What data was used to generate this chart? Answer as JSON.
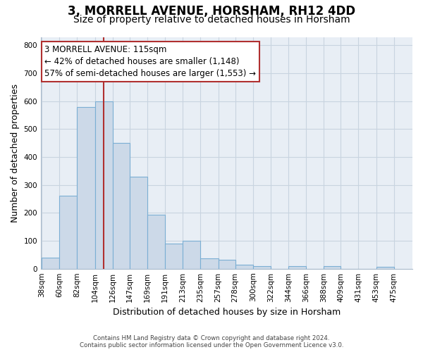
{
  "title": "3, MORRELL AVENUE, HORSHAM, RH12 4DD",
  "subtitle": "Size of property relative to detached houses in Horsham",
  "xlabel": "Distribution of detached houses by size in Horsham",
  "ylabel": "Number of detached properties",
  "bar_left_edges": [
    38,
    60,
    82,
    104,
    126,
    147,
    169,
    191,
    213,
    235,
    257,
    278,
    300,
    322,
    344,
    366,
    388,
    409,
    431,
    453
  ],
  "bar_heights": [
    40,
    262,
    580,
    600,
    450,
    330,
    193,
    90,
    100,
    37,
    32,
    15,
    10,
    0,
    10,
    0,
    10,
    0,
    0,
    8
  ],
  "bar_widths": [
    22,
    22,
    22,
    22,
    21,
    22,
    22,
    22,
    22,
    22,
    21,
    22,
    22,
    22,
    22,
    22,
    21,
    22,
    22,
    22
  ],
  "tick_labels": [
    "38sqm",
    "60sqm",
    "82sqm",
    "104sqm",
    "126sqm",
    "147sqm",
    "169sqm",
    "191sqm",
    "213sqm",
    "235sqm",
    "257sqm",
    "278sqm",
    "300sqm",
    "322sqm",
    "344sqm",
    "366sqm",
    "388sqm",
    "409sqm",
    "431sqm",
    "453sqm",
    "475sqm"
  ],
  "bar_color": "#ccd9e8",
  "bar_edge_color": "#7bafd4",
  "vline_x": 115,
  "vline_color": "#b03030",
  "annotation_text": "3 MORRELL AVENUE: 115sqm\n← 42% of detached houses are smaller (1,148)\n57% of semi-detached houses are larger (1,553) →",
  "annotation_box_color": "#ffffff",
  "annotation_box_edge_color": "#b03030",
  "ylim": [
    0,
    830
  ],
  "yticks": [
    0,
    100,
    200,
    300,
    400,
    500,
    600,
    700,
    800
  ],
  "grid_color": "#c8d4e0",
  "background_color": "#ffffff",
  "plot_bg_color": "#e8eef5",
  "footer_line1": "Contains HM Land Registry data © Crown copyright and database right 2024.",
  "footer_line2": "Contains public sector information licensed under the Open Government Licence v3.0.",
  "title_fontsize": 12,
  "subtitle_fontsize": 10,
  "annotation_fontsize": 8.5,
  "axis_label_fontsize": 9,
  "tick_fontsize": 7.5,
  "ylabel_fontsize": 9
}
